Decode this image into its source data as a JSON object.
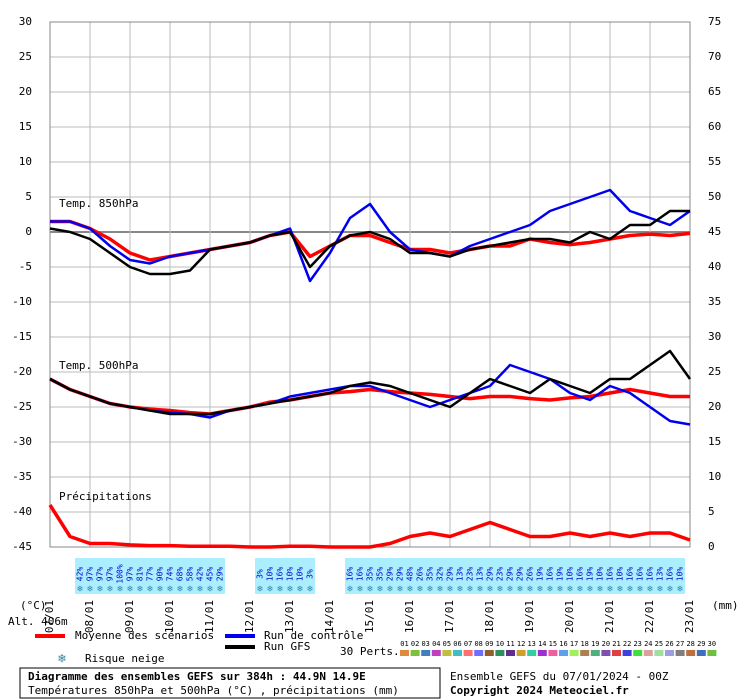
{
  "chart_data": {
    "type": "line",
    "title": "Diagramme des ensembles GEFS sur 384h : 44.9N 14.9E",
    "subtitle": "Températures 850hPa et 500hPa (°C) , précipitations (mm)",
    "run_info": "Ensemble GEFS du 07/01/2024 - 00Z",
    "copyright": "Copyright 2024 Meteociel.fr",
    "annotations": [
      "Temp. 850hPa",
      "Temp. 500hPa",
      "Précipitations"
    ],
    "y_label": "(°C)",
    "y2_label": "(mm)",
    "altitude": "Alt. 406m",
    "grid": true,
    "xlim": [
      0,
      384
    ],
    "xticks": [
      {
        "value": 0,
        "label": "07/01"
      },
      {
        "value": 24,
        "label": "08/01"
      },
      {
        "value": 48,
        "label": "09/01"
      },
      {
        "value": 72,
        "label": "10/01"
      },
      {
        "value": 96,
        "label": "11/01"
      },
      {
        "value": 120,
        "label": "12/01"
      },
      {
        "value": 144,
        "label": "13/01"
      },
      {
        "value": 168,
        "label": "14/01"
      },
      {
        "value": 192,
        "label": "15/01"
      },
      {
        "value": 216,
        "label": "16/01"
      },
      {
        "value": 240,
        "label": "17/01"
      },
      {
        "value": 264,
        "label": "18/01"
      },
      {
        "value": 288,
        "label": "19/01"
      },
      {
        "value": 312,
        "label": "20/01"
      },
      {
        "value": 336,
        "label": "21/01"
      },
      {
        "value": 360,
        "label": "22/01"
      },
      {
        "value": 384,
        "label": "23/01"
      }
    ],
    "ylim": [
      -45,
      30
    ],
    "yticks": [
      -45,
      -40,
      -35,
      -30,
      -25,
      -20,
      -15,
      -10,
      -5,
      0,
      5,
      10,
      15,
      20,
      25,
      30
    ],
    "y2lim": [
      0,
      75
    ],
    "y2ticks": [
      0,
      5,
      10,
      15,
      20,
      25,
      30,
      35,
      40,
      45,
      50,
      55,
      60,
      65,
      70,
      75
    ],
    "x": [
      0,
      12,
      24,
      36,
      48,
      60,
      72,
      84,
      96,
      108,
      120,
      132,
      144,
      156,
      168,
      180,
      192,
      204,
      216,
      228,
      240,
      252,
      264,
      276,
      288,
      300,
      312,
      324,
      336,
      348,
      360,
      372,
      384
    ],
    "series": [
      {
        "name": "Moyenne des scénarios",
        "color": "#ff0000",
        "width": 3.5,
        "values": [
          1.5,
          1.5,
          0.5,
          -1,
          -3,
          -4,
          -3.5,
          -3,
          -2.5,
          -2,
          -1.5,
          -0.5,
          0,
          -3.5,
          -2,
          -0.5,
          -0.5,
          -1.5,
          -2.5,
          -2.5,
          -3,
          -2.5,
          -2,
          -2,
          -1,
          -1.5,
          -1.8,
          -1.5,
          -1,
          -0.5,
          -0.3,
          -0.5,
          -0.2
        ]
      },
      {
        "name": "Run de contrôle",
        "color": "#0000ee",
        "width": 2.5,
        "values": [
          1.5,
          1.5,
          0.5,
          -2,
          -4,
          -4.5,
          -3.5,
          -3,
          -2.5,
          -2,
          -1.5,
          -0.5,
          0.5,
          -7,
          -3,
          2,
          4,
          0,
          -2.5,
          -3,
          -3.5,
          -2,
          -1,
          0,
          1,
          3,
          4,
          5,
          6,
          3,
          2,
          1,
          3
        ]
      },
      {
        "name": "Run GFS",
        "color": "#000000",
        "width": 2.5,
        "values": [
          0.5,
          0,
          -1,
          -3,
          -5,
          -6,
          -6,
          -5.5,
          -2.5,
          -2,
          -1.5,
          -0.5,
          0,
          -5,
          -2,
          -0.5,
          0,
          -1,
          -3,
          -3,
          -3.5,
          -2.5,
          -2,
          -1.5,
          -1,
          -1,
          -1.5,
          0,
          -1,
          1,
          1,
          3,
          3
        ]
      },
      {
        "color": "#ff0000",
        "width": 3.5,
        "values": [
          -21,
          -22.5,
          -23.5,
          -24.5,
          -25,
          -25.3,
          -25.5,
          -25.8,
          -26,
          -25.5,
          -25,
          -24.3,
          -24,
          -23.5,
          -23,
          -22.8,
          -22.5,
          -22.8,
          -23,
          -23.2,
          -23.5,
          -23.8,
          -23.5,
          -23.5,
          -23.8,
          -24,
          -23.7,
          -23.5,
          -23,
          -22.5,
          -23,
          -23.5,
          -23.5
        ]
      },
      {
        "color": "#0000ee",
        "width": 2.5,
        "values": [
          -21,
          -22.5,
          -23.5,
          -24.5,
          -25,
          -25.5,
          -25.8,
          -26,
          -26.5,
          -25.5,
          -25,
          -24.5,
          -23.5,
          -23,
          -22.5,
          -22,
          -22,
          -23,
          -24,
          -25,
          -24,
          -23,
          -22,
          -19,
          -20,
          -21,
          -23,
          -24,
          -22,
          -23,
          -25,
          -27,
          -27.5
        ]
      },
      {
        "color": "#000000",
        "width": 2.5,
        "values": [
          -21,
          -22.5,
          -23.5,
          -24.5,
          -25,
          -25.5,
          -26,
          -26,
          -26,
          -25.5,
          -25,
          -24.5,
          -24,
          -23.5,
          -23,
          -22,
          -21.5,
          -22,
          -23,
          -24,
          -25,
          -23,
          -21,
          -22,
          -23,
          -21,
          -22,
          -23,
          -21,
          -21,
          -19,
          -17,
          -21
        ]
      },
      {
        "color": "#ff0000",
        "width": 3.5,
        "axis": "y2",
        "values": [
          6,
          1.5,
          0.5,
          0.5,
          0.3,
          0.2,
          0.2,
          0.1,
          0.1,
          0.1,
          0,
          0,
          0.1,
          0.1,
          0,
          0,
          0,
          0.5,
          1.5,
          2,
          1.5,
          2.5,
          3.5,
          2.5,
          1.5,
          1.5,
          2,
          1.5,
          2,
          1.5,
          2,
          2,
          1
        ]
      }
    ],
    "snow_risk": {
      "name": "Risque neige",
      "x": [
        18,
        24,
        30,
        36,
        42,
        48,
        54,
        60,
        66,
        72,
        78,
        84,
        90,
        96,
        102,
        126,
        132,
        138,
        144,
        150,
        156,
        180,
        186,
        192,
        198,
        204,
        210,
        216,
        222,
        228,
        234,
        240,
        246,
        252,
        258,
        264,
        270,
        276,
        282,
        288,
        294,
        300,
        306,
        312,
        318,
        324,
        330,
        336,
        342,
        348,
        354,
        360,
        366,
        372,
        378
      ],
      "values": [
        42,
        97,
        97,
        97,
        100,
        97,
        81,
        77,
        90,
        74,
        68,
        58,
        42,
        45,
        29,
        3,
        10,
        16,
        10,
        10,
        3,
        16,
        16,
        35,
        35,
        29,
        29,
        48,
        26,
        35,
        32,
        29,
        13,
        23,
        13,
        29,
        23,
        29,
        29,
        26,
        19,
        16,
        19,
        10,
        16,
        19,
        10,
        16,
        10,
        16,
        16,
        16,
        13,
        16,
        10
      ],
      "value_labels": [
        "42%",
        "97%",
        "97%",
        "97%",
        "100%",
        "97%",
        "81%",
        "77%",
        "90%",
        "74%",
        "68%",
        "58%",
        "42%",
        "45%",
        "29%",
        "3%",
        "10%",
        "16%",
        "10%",
        "10%",
        "3%",
        "16%",
        "16%",
        "35%",
        "35%",
        "29%",
        "29%",
        "48%",
        "26%",
        "35%",
        "32%",
        "29%",
        "13%",
        "23%",
        "13%",
        "29%",
        "23%",
        "29%",
        "29%",
        "26%",
        "19%",
        "16%",
        "19%",
        "10%",
        "16%",
        "19%",
        "10%",
        "16%",
        "10%",
        "16%",
        "16%",
        "16%",
        "13%",
        "16%",
        "10%"
      ]
    },
    "perturbations": {
      "name": "30 Perts.",
      "members": [
        {
          "label": "01",
          "color": "#e08a3c"
        },
        {
          "label": "02",
          "color": "#7fbf3f"
        },
        {
          "label": "03",
          "color": "#3f7fbf"
        },
        {
          "label": "04",
          "color": "#bf3fbf"
        },
        {
          "label": "05",
          "color": "#bfbf3f"
        },
        {
          "label": "06",
          "color": "#3fbfbf"
        },
        {
          "label": "07",
          "color": "#ff6f6f"
        },
        {
          "label": "08",
          "color": "#6f6fff"
        },
        {
          "label": "09",
          "color": "#8f5f2f"
        },
        {
          "label": "10",
          "color": "#2f8f5f"
        },
        {
          "label": "11",
          "color": "#5f2f8f"
        },
        {
          "label": "12",
          "color": "#cf9f2f"
        },
        {
          "label": "13",
          "color": "#2fcf9f"
        },
        {
          "label": "14",
          "color": "#9f2fcf"
        },
        {
          "label": "15",
          "color": "#ef5f9f"
        },
        {
          "label": "16",
          "color": "#5f9fef"
        },
        {
          "label": "17",
          "color": "#9fef5f"
        },
        {
          "label": "18",
          "color": "#af7f4f"
        },
        {
          "label": "19",
          "color": "#4faf7f"
        },
        {
          "label": "20",
          "color": "#7f4faf"
        },
        {
          "label": "21",
          "color": "#df3f3f"
        },
        {
          "label": "22",
          "color": "#3f3fdf"
        },
        {
          "label": "23",
          "color": "#3fdf3f"
        },
        {
          "label": "24",
          "color": "#df9f9f"
        },
        {
          "label": "25",
          "color": "#9fdf9f"
        },
        {
          "label": "26",
          "color": "#9f9fdf"
        },
        {
          "label": "27",
          "color": "#7f7f7f"
        },
        {
          "label": "28",
          "color": "#bf6f3f"
        },
        {
          "label": "29",
          "color": "#3f6fbf"
        },
        {
          "label": "30",
          "color": "#6fbf3f"
        }
      ]
    }
  }
}
